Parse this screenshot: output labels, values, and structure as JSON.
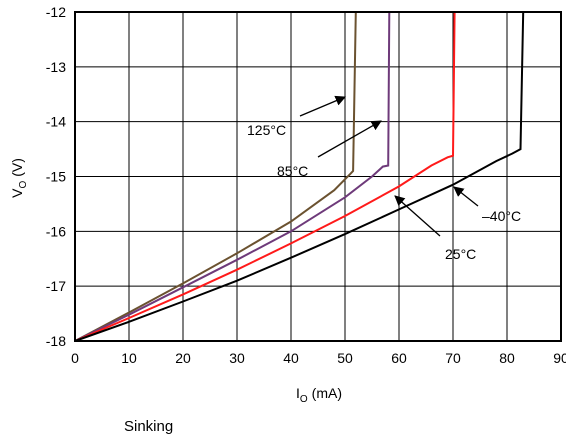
{
  "chart_data": {
    "type": "line",
    "xlabel": "I",
    "xlabel_sub": "O",
    "xlabel_unit": "(mA)",
    "ylabel": "V",
    "ylabel_sub": "O",
    "ylabel_unit": "(V)",
    "xlim": [
      0,
      90
    ],
    "ylim": [
      -18,
      -12
    ],
    "x_ticks": [
      "0",
      "10",
      "20",
      "30",
      "40",
      "50",
      "60",
      "70",
      "80",
      "90"
    ],
    "y_ticks": [
      "-12",
      "-13",
      "-14",
      "-15",
      "-16",
      "-17",
      "-18"
    ],
    "grid": true,
    "series": [
      {
        "name": "125°C",
        "color": "#6b5230",
        "points": [
          [
            0,
            -18
          ],
          [
            10,
            -17.48
          ],
          [
            20,
            -16.95
          ],
          [
            30,
            -16.4
          ],
          [
            40,
            -15.82
          ],
          [
            48,
            -15.25
          ],
          [
            51,
            -14.95
          ],
          [
            51.5,
            -14.9
          ],
          [
            52,
            -12
          ]
        ]
      },
      {
        "name": "85°C",
        "color": "#6e3a7a",
        "points": [
          [
            0,
            -18
          ],
          [
            10,
            -17.52
          ],
          [
            20,
            -17.02
          ],
          [
            30,
            -16.52
          ],
          [
            40,
            -16.0
          ],
          [
            50,
            -15.38
          ],
          [
            55,
            -15.0
          ],
          [
            57,
            -14.82
          ],
          [
            58,
            -14.8
          ],
          [
            58.2,
            -12
          ]
        ]
      },
      {
        "name": "25°C",
        "color": "#ff1a1a",
        "points": [
          [
            0,
            -18
          ],
          [
            10,
            -17.58
          ],
          [
            20,
            -17.15
          ],
          [
            30,
            -16.7
          ],
          [
            40,
            -16.22
          ],
          [
            50,
            -15.72
          ],
          [
            60,
            -15.18
          ],
          [
            66,
            -14.8
          ],
          [
            69,
            -14.65
          ],
          [
            70,
            -14.62
          ],
          [
            70.3,
            -12
          ]
        ]
      },
      {
        "name": "–40°C",
        "color": "#000000",
        "points": [
          [
            0,
            -18
          ],
          [
            10,
            -17.65
          ],
          [
            20,
            -17.28
          ],
          [
            30,
            -16.9
          ],
          [
            40,
            -16.48
          ],
          [
            50,
            -16.05
          ],
          [
            60,
            -15.6
          ],
          [
            70,
            -15.15
          ],
          [
            78,
            -14.72
          ],
          [
            81,
            -14.58
          ],
          [
            82.5,
            -14.5
          ],
          [
            83,
            -12
          ]
        ]
      }
    ],
    "annotations": [
      {
        "text": "125°C"
      },
      {
        "text": "85°C"
      },
      {
        "text": "25°C"
      },
      {
        "text": "–40°C"
      }
    ]
  },
  "caption": "Sinking"
}
